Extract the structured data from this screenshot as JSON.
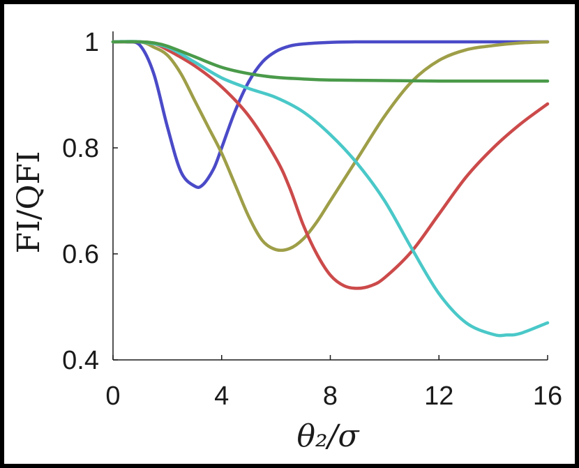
{
  "chart_data": {
    "type": "line",
    "xlabel": "θ₂/σ",
    "ylabel": "FI/QFI",
    "xlim": [
      0,
      16
    ],
    "ylim": [
      0.4,
      1.05
    ],
    "xticks": [
      0,
      4,
      8,
      12,
      16
    ],
    "xtick_labels": [
      "0",
      "4",
      "8",
      "12",
      "16"
    ],
    "yticks": [
      0.4,
      0.6,
      0.8,
      1.0
    ],
    "ytick_labels": [
      "0.4",
      "0.6",
      "0.8",
      "1"
    ],
    "grid": false,
    "series": [
      {
        "color": "#4a4ac8",
        "x": [
          0,
          0.5,
          1,
          1.5,
          2,
          2.5,
          3,
          3.3,
          3.7,
          4,
          4.5,
          5,
          5.5,
          6,
          6.5,
          7,
          8,
          9,
          10,
          12,
          14,
          16
        ],
        "y": [
          1.0,
          1.0,
          0.993,
          0.94,
          0.84,
          0.755,
          0.728,
          0.73,
          0.76,
          0.8,
          0.87,
          0.925,
          0.962,
          0.982,
          0.992,
          0.996,
          0.999,
          1.0,
          1.0,
          1.0,
          1.0,
          1.0
        ]
      },
      {
        "color": "#9e9e48",
        "x": [
          0,
          1,
          1.5,
          2,
          2.5,
          3,
          3.5,
          4,
          4.5,
          5,
          5.5,
          6,
          6.5,
          7,
          7.5,
          8,
          9,
          10,
          11,
          12,
          13,
          14,
          15,
          16
        ],
        "y": [
          1.0,
          1.0,
          0.99,
          0.975,
          0.94,
          0.89,
          0.84,
          0.79,
          0.73,
          0.67,
          0.625,
          0.608,
          0.61,
          0.628,
          0.66,
          0.7,
          0.78,
          0.86,
          0.925,
          0.965,
          0.985,
          0.993,
          0.998,
          1.0
        ]
      },
      {
        "color": "#cc4a4a",
        "x": [
          0,
          1,
          1.5,
          2,
          3,
          4,
          5,
          6,
          6.5,
          7,
          7.5,
          8,
          8.5,
          9,
          9.5,
          10,
          11,
          12,
          13,
          14,
          15,
          16
        ],
        "y": [
          1.0,
          1.0,
          0.997,
          0.985,
          0.955,
          0.915,
          0.86,
          0.78,
          0.725,
          0.655,
          0.6,
          0.56,
          0.54,
          0.535,
          0.54,
          0.555,
          0.605,
          0.675,
          0.745,
          0.8,
          0.845,
          0.883
        ]
      },
      {
        "color": "#4ac8c8",
        "x": [
          0,
          1,
          2,
          3,
          4,
          5,
          6,
          7,
          8,
          9,
          10,
          11,
          12,
          13,
          14,
          14.5,
          15,
          16
        ],
        "y": [
          1.0,
          1.0,
          0.99,
          0.962,
          0.932,
          0.912,
          0.895,
          0.868,
          0.825,
          0.77,
          0.7,
          0.61,
          0.525,
          0.47,
          0.448,
          0.447,
          0.45,
          0.47
        ]
      },
      {
        "color": "#4a9a4a",
        "x": [
          0,
          1,
          1.5,
          2,
          3,
          4,
          5,
          6,
          7,
          8,
          10,
          12,
          14,
          16
        ],
        "y": [
          1.0,
          1.0,
          0.998,
          0.992,
          0.972,
          0.952,
          0.94,
          0.933,
          0.93,
          0.928,
          0.927,
          0.926,
          0.926,
          0.926
        ]
      }
    ]
  }
}
